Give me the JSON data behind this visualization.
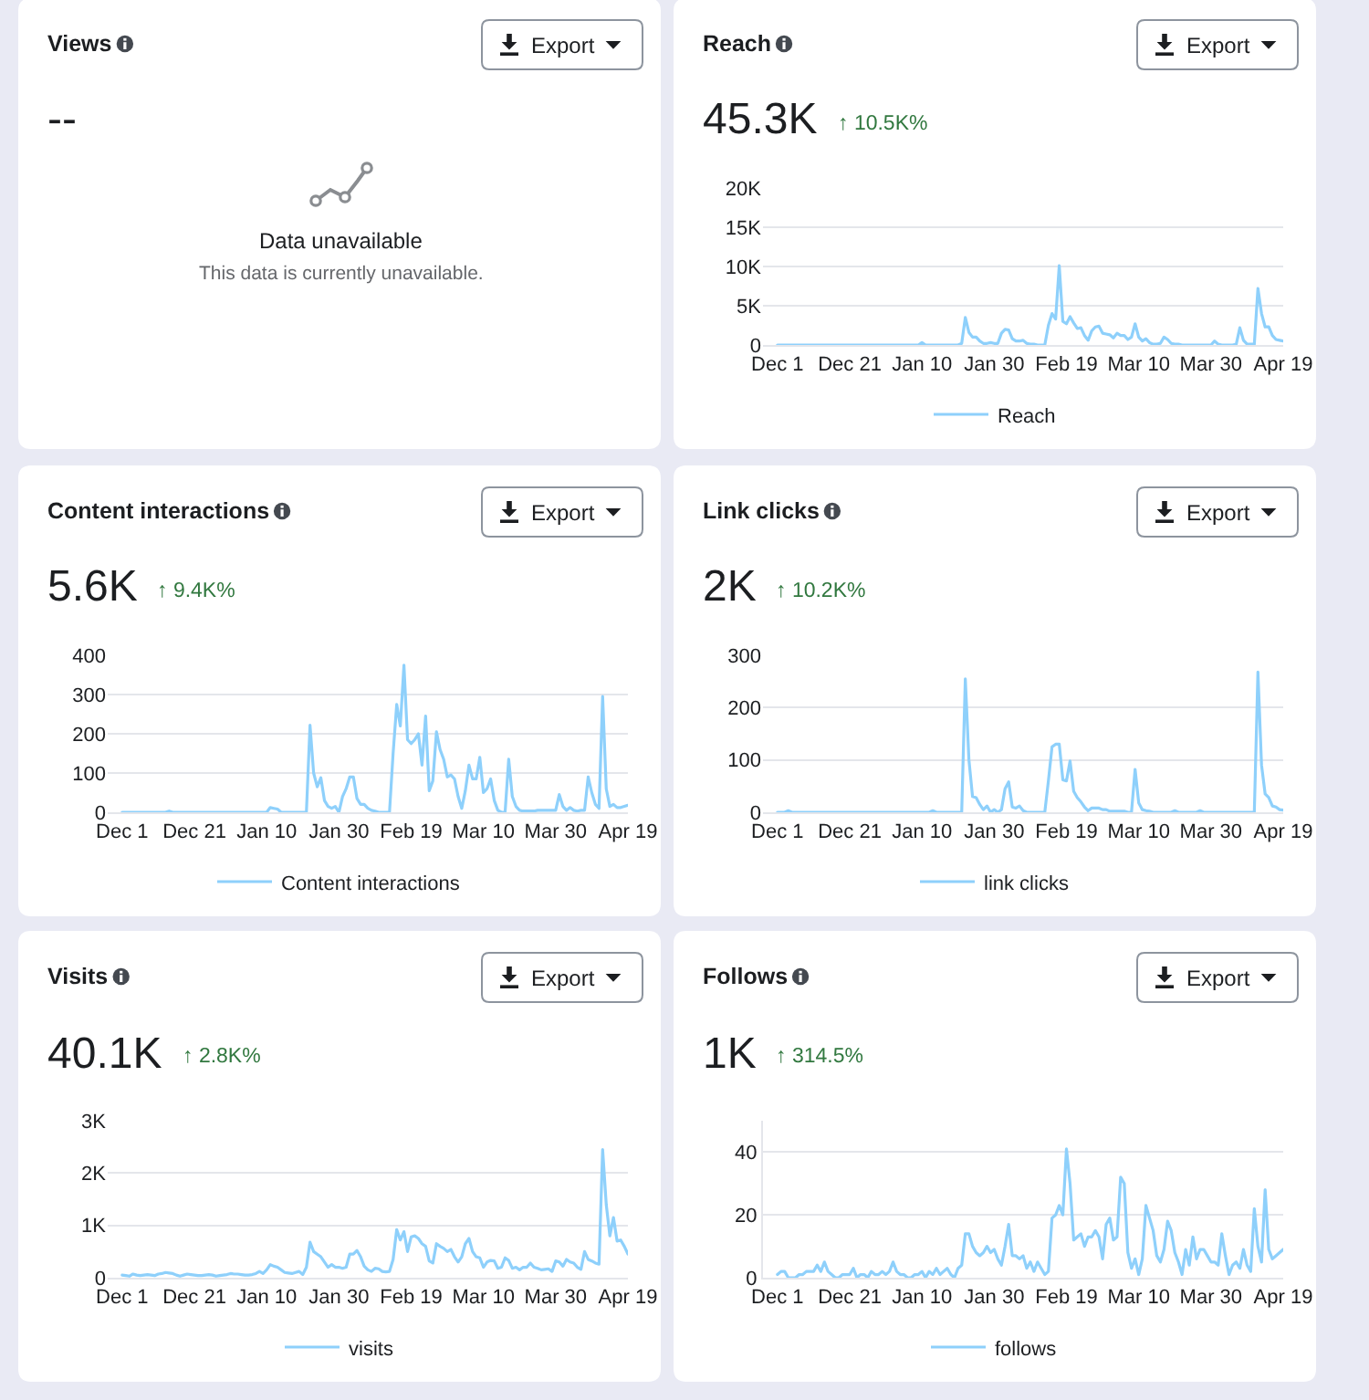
{
  "chart_data": [
    {
      "type": "other",
      "title": "Views",
      "subtitle": "--",
      "annotations": [
        "Export",
        "Data unavailable",
        "This data is currently unavailable."
      ]
    },
    {
      "type": "line",
      "title": "Reach",
      "subtitle": "45.3K",
      "annotations": [
        "Export",
        "↑ 10.5K%"
      ],
      "categories": [
        "Dec 1",
        null,
        null,
        null,
        null,
        null,
        null,
        null,
        null,
        null,
        null,
        null,
        null,
        null,
        null,
        null,
        null,
        null,
        null,
        null,
        "Dec 21",
        null,
        null,
        null,
        null,
        null,
        null,
        null,
        null,
        null,
        null,
        null,
        null,
        null,
        null,
        null,
        null,
        null,
        null,
        null,
        "Jan 10",
        null,
        null,
        null,
        null,
        null,
        null,
        null,
        null,
        null,
        null,
        null,
        null,
        null,
        null,
        null,
        null,
        null,
        null,
        null,
        "Jan 30",
        null,
        null,
        null,
        null,
        null,
        null,
        null,
        null,
        null,
        null,
        null,
        null,
        null,
        null,
        null,
        null,
        null,
        null,
        null,
        "Feb 19",
        null,
        null,
        null,
        null,
        null,
        null,
        null,
        null,
        null,
        null,
        null,
        null,
        null,
        null,
        null,
        null,
        null,
        null,
        null,
        "Mar 10",
        null,
        null,
        null,
        null,
        null,
        null,
        null,
        null,
        null,
        null,
        null,
        null,
        null,
        null,
        null,
        null,
        null,
        null,
        null,
        "Mar 30",
        null,
        null,
        null,
        null,
        null,
        null,
        null,
        null,
        null,
        null,
        null,
        null,
        null,
        null,
        null,
        null,
        null,
        null,
        null,
        "Apr 19"
      ],
      "series": [
        {
          "name": "Reach",
          "color": "#8ed0fb",
          "values": [
            0,
            0,
            0,
            0,
            0,
            0,
            0,
            0,
            0,
            0,
            0,
            0,
            0,
            0,
            0,
            0,
            0,
            0,
            0,
            0,
            0,
            0,
            0,
            0,
            0,
            0,
            0,
            0,
            0,
            0,
            0,
            0,
            0,
            0,
            0,
            0,
            0,
            0,
            0,
            0,
            300,
            0,
            0,
            0,
            0,
            0,
            0,
            0,
            0,
            0,
            0,
            200,
            3500,
            1600,
            1000,
            1000,
            500,
            200,
            200,
            300,
            200,
            200,
            1500,
            2000,
            1900,
            800,
            500,
            500,
            600,
            200,
            100,
            100,
            0,
            0,
            0,
            2500,
            4000,
            3300,
            10100,
            3000,
            2700,
            3600,
            2800,
            2100,
            2200,
            1200,
            600,
            1800,
            2300,
            2400,
            1500,
            1400,
            1300,
            900,
            1500,
            1200,
            1200,
            700,
            1000,
            2700,
            1000,
            500,
            800,
            300,
            100,
            100,
            200,
            1000,
            700,
            200,
            100,
            100,
            0,
            0,
            0,
            0,
            0,
            0,
            0,
            0,
            0,
            500,
            100,
            0,
            0,
            0,
            0,
            100,
            2200,
            600,
            100,
            100,
            100,
            7200,
            4000,
            2300,
            2300,
            1200,
            700,
            600,
            500
          ]
        }
      ],
      "ylim": [
        0,
        20000
      ],
      "yticks": [
        0,
        {
          "value": 5000,
          "label": "5K"
        },
        {
          "value": 10000,
          "label": "10K"
        },
        {
          "value": 15000,
          "label": "15K"
        },
        {
          "value": 20000,
          "label": "20K"
        }
      ],
      "grid": "y",
      "legend": "bottom"
    },
    {
      "type": "line",
      "title": "Content interactions",
      "subtitle": "5.6K",
      "annotations": [
        "Export",
        "↑ 9.4K%"
      ],
      "categories": [
        "Dec 1",
        null,
        null,
        null,
        null,
        null,
        null,
        null,
        null,
        null,
        null,
        null,
        null,
        null,
        null,
        null,
        null,
        null,
        null,
        null,
        "Dec 21",
        null,
        null,
        null,
        null,
        null,
        null,
        null,
        null,
        null,
        null,
        null,
        null,
        null,
        null,
        null,
        null,
        null,
        null,
        null,
        "Jan 10",
        null,
        null,
        null,
        null,
        null,
        null,
        null,
        null,
        null,
        null,
        null,
        null,
        null,
        null,
        null,
        null,
        null,
        null,
        null,
        "Jan 30",
        null,
        null,
        null,
        null,
        null,
        null,
        null,
        null,
        null,
        null,
        null,
        null,
        null,
        null,
        null,
        null,
        null,
        null,
        null,
        "Feb 19",
        null,
        null,
        null,
        null,
        null,
        null,
        null,
        null,
        null,
        null,
        null,
        null,
        null,
        null,
        null,
        null,
        null,
        null,
        null,
        "Mar 10",
        null,
        null,
        null,
        null,
        null,
        null,
        null,
        null,
        null,
        null,
        null,
        null,
        null,
        null,
        null,
        null,
        null,
        null,
        null,
        "Mar 30",
        null,
        null,
        null,
        null,
        null,
        null,
        null,
        null,
        null,
        null,
        null,
        null,
        null,
        null,
        null,
        null,
        null,
        null,
        null,
        "Apr 19"
      ],
      "series": [
        {
          "name": "Content interactions",
          "color": "#8ed0fb",
          "values": [
            0,
            0,
            0,
            0,
            0,
            0,
            0,
            0,
            0,
            0,
            0,
            0,
            0,
            3,
            0,
            0,
            0,
            0,
            0,
            0,
            0,
            0,
            0,
            0,
            0,
            0,
            0,
            0,
            0,
            0,
            0,
            0,
            0,
            0,
            0,
            0,
            0,
            0,
            0,
            0,
            0,
            12,
            10,
            8,
            0,
            0,
            0,
            0,
            0,
            0,
            0,
            0,
            222,
            100,
            65,
            88,
            30,
            15,
            10,
            15,
            0,
            40,
            60,
            90,
            90,
            35,
            20,
            20,
            10,
            5,
            3,
            0,
            0,
            0,
            0,
            150,
            275,
            220,
            375,
            185,
            175,
            185,
            200,
            120,
            245,
            55,
            80,
            205,
            160,
            135,
            90,
            95,
            85,
            40,
            10,
            55,
            120,
            85,
            85,
            140,
            50,
            60,
            85,
            30,
            5,
            0,
            0,
            135,
            40,
            15,
            5,
            3,
            3,
            3,
            3,
            5,
            5,
            5,
            5,
            5,
            5,
            45,
            15,
            5,
            12,
            5,
            3,
            5,
            5,
            90,
            50,
            20,
            10,
            295,
            60,
            15,
            20,
            12,
            12,
            15,
            18
          ]
        }
      ],
      "ylim": [
        0,
        400
      ],
      "yticks": [
        0,
        100,
        200,
        300,
        400
      ],
      "grid": "y",
      "legend": "bottom"
    },
    {
      "type": "line",
      "title": "Link clicks",
      "subtitle": "2K",
      "annotations": [
        "Export",
        "↑ 10.2K%"
      ],
      "categories": [
        "Dec 1",
        null,
        null,
        null,
        null,
        null,
        null,
        null,
        null,
        null,
        null,
        null,
        null,
        null,
        null,
        null,
        null,
        null,
        null,
        null,
        "Dec 21",
        null,
        null,
        null,
        null,
        null,
        null,
        null,
        null,
        null,
        null,
        null,
        null,
        null,
        null,
        null,
        null,
        null,
        null,
        null,
        "Jan 10",
        null,
        null,
        null,
        null,
        null,
        null,
        null,
        null,
        null,
        null,
        null,
        null,
        null,
        null,
        null,
        null,
        null,
        null,
        null,
        "Jan 30",
        null,
        null,
        null,
        null,
        null,
        null,
        null,
        null,
        null,
        null,
        null,
        null,
        null,
        null,
        null,
        null,
        null,
        null,
        null,
        "Feb 19",
        null,
        null,
        null,
        null,
        null,
        null,
        null,
        null,
        null,
        null,
        null,
        null,
        null,
        null,
        null,
        null,
        null,
        null,
        null,
        "Mar 10",
        null,
        null,
        null,
        null,
        null,
        null,
        null,
        null,
        null,
        null,
        null,
        null,
        null,
        null,
        null,
        null,
        null,
        null,
        null,
        "Mar 30",
        null,
        null,
        null,
        null,
        null,
        null,
        null,
        null,
        null,
        null,
        null,
        null,
        null,
        null,
        null,
        null,
        null,
        null,
        null,
        "Apr 19"
      ],
      "series": [
        {
          "name": "link clicks",
          "color": "#8ed0fb",
          "values": [
            0,
            0,
            0,
            3,
            0,
            0,
            0,
            0,
            0,
            0,
            0,
            0,
            0,
            0,
            0,
            0,
            0,
            0,
            0,
            0,
            0,
            0,
            0,
            0,
            0,
            0,
            0,
            0,
            0,
            0,
            0,
            0,
            0,
            0,
            0,
            0,
            0,
            0,
            0,
            0,
            0,
            0,
            0,
            3,
            0,
            0,
            0,
            0,
            0,
            0,
            0,
            0,
            255,
            100,
            30,
            28,
            15,
            5,
            12,
            0,
            5,
            0,
            5,
            45,
            58,
            10,
            8,
            12,
            3,
            0,
            0,
            0,
            0,
            0,
            0,
            60,
            125,
            130,
            130,
            62,
            60,
            98,
            40,
            28,
            20,
            10,
            3,
            8,
            8,
            8,
            5,
            5,
            2,
            2,
            2,
            2,
            2,
            0,
            0,
            82,
            18,
            5,
            3,
            2,
            0,
            0,
            0,
            0,
            0,
            0,
            3,
            0,
            0,
            0,
            0,
            0,
            0,
            3,
            0,
            0,
            0,
            0,
            0,
            0,
            0,
            0,
            0,
            0,
            0,
            0,
            0,
            0,
            0,
            268,
            90,
            35,
            28,
            12,
            10,
            5,
            4
          ]
        }
      ],
      "ylim": [
        0,
        300
      ],
      "yticks": [
        0,
        100,
        200,
        300
      ],
      "grid": "y",
      "legend": "bottom"
    },
    {
      "type": "line",
      "title": "Visits",
      "subtitle": "40.1K",
      "annotations": [
        "Export",
        "↑ 2.8K%"
      ],
      "categories": [
        "Dec 1",
        null,
        null,
        null,
        null,
        null,
        null,
        null,
        null,
        null,
        null,
        null,
        null,
        null,
        null,
        null,
        null,
        null,
        null,
        null,
        "Dec 21",
        null,
        null,
        null,
        null,
        null,
        null,
        null,
        null,
        null,
        null,
        null,
        null,
        null,
        null,
        null,
        null,
        null,
        null,
        null,
        "Jan 10",
        null,
        null,
        null,
        null,
        null,
        null,
        null,
        null,
        null,
        null,
        null,
        null,
        null,
        null,
        null,
        null,
        null,
        null,
        null,
        "Jan 30",
        null,
        null,
        null,
        null,
        null,
        null,
        null,
        null,
        null,
        null,
        null,
        null,
        null,
        null,
        null,
        null,
        null,
        null,
        null,
        "Feb 19",
        null,
        null,
        null,
        null,
        null,
        null,
        null,
        null,
        null,
        null,
        null,
        null,
        null,
        null,
        null,
        null,
        null,
        null,
        null,
        "Mar 10",
        null,
        null,
        null,
        null,
        null,
        null,
        null,
        null,
        null,
        null,
        null,
        null,
        null,
        null,
        null,
        null,
        null,
        null,
        null,
        "Mar 30",
        null,
        null,
        null,
        null,
        null,
        null,
        null,
        null,
        null,
        null,
        null,
        null,
        null,
        null,
        null,
        null,
        null,
        null,
        null,
        "Apr 19"
      ],
      "series": [
        {
          "name": "visits",
          "color": "#8ed0fb",
          "values": [
            50,
            40,
            30,
            70,
            50,
            40,
            50,
            60,
            50,
            40,
            70,
            80,
            100,
            90,
            80,
            50,
            30,
            50,
            70,
            60,
            50,
            40,
            40,
            50,
            60,
            50,
            30,
            40,
            50,
            60,
            80,
            70,
            70,
            60,
            50,
            50,
            60,
            80,
            120,
            80,
            150,
            250,
            220,
            200,
            150,
            100,
            90,
            80,
            100,
            120,
            60,
            200,
            680,
            500,
            450,
            400,
            300,
            200,
            250,
            200,
            200,
            180,
            200,
            450,
            450,
            520,
            400,
            220,
            150,
            120,
            180,
            170,
            120,
            110,
            120,
            350,
            920,
            720,
            880,
            500,
            780,
            800,
            750,
            650,
            600,
            320,
            280,
            650,
            600,
            560,
            500,
            540,
            400,
            300,
            400,
            650,
            750,
            500,
            400,
            380,
            200,
            300,
            330,
            320,
            180,
            200,
            380,
            330,
            180,
            200,
            150,
            200,
            200,
            280,
            200,
            180,
            150,
            160,
            170,
            120,
            320,
            300,
            220,
            350,
            300,
            280,
            200,
            160,
            500,
            350,
            320,
            280,
            260,
            2450,
            1400,
            800,
            1150,
            700,
            720,
            600,
            450
          ]
        }
      ],
      "ylim": [
        0,
        3000
      ],
      "yticks": [
        0,
        {
          "value": 1000,
          "label": "1K"
        },
        {
          "value": 2000,
          "label": "2K"
        },
        {
          "value": 3000,
          "label": "3K"
        }
      ],
      "grid": "y",
      "legend": "bottom"
    },
    {
      "type": "line",
      "title": "Follows",
      "subtitle": "1K",
      "annotations": [
        "Export",
        "↑ 314.5%"
      ],
      "categories": [
        "Dec 1",
        null,
        null,
        null,
        null,
        null,
        null,
        null,
        null,
        null,
        null,
        null,
        null,
        null,
        null,
        null,
        null,
        null,
        null,
        null,
        "Dec 21",
        null,
        null,
        null,
        null,
        null,
        null,
        null,
        null,
        null,
        null,
        null,
        null,
        null,
        null,
        null,
        null,
        null,
        null,
        null,
        "Jan 10",
        null,
        null,
        null,
        null,
        null,
        null,
        null,
        null,
        null,
        null,
        null,
        null,
        null,
        null,
        null,
        null,
        null,
        null,
        null,
        "Jan 30",
        null,
        null,
        null,
        null,
        null,
        null,
        null,
        null,
        null,
        null,
        null,
        null,
        null,
        null,
        null,
        null,
        null,
        null,
        null,
        "Feb 19",
        null,
        null,
        null,
        null,
        null,
        null,
        null,
        null,
        null,
        null,
        null,
        null,
        null,
        null,
        null,
        null,
        null,
        null,
        null,
        "Mar 10",
        null,
        null,
        null,
        null,
        null,
        null,
        null,
        null,
        null,
        null,
        null,
        null,
        null,
        null,
        null,
        null,
        null,
        null,
        null,
        "Mar 30",
        null,
        null,
        null,
        null,
        null,
        null,
        null,
        null,
        null,
        null,
        null,
        null,
        null,
        null,
        null,
        null,
        null,
        null,
        null,
        "Apr 19"
      ],
      "series": [
        {
          "name": "follows",
          "color": "#8ed0fb",
          "values": [
            1,
            2,
            2,
            0,
            0,
            0,
            1,
            1,
            2,
            2,
            2,
            4,
            2,
            5,
            2,
            1,
            0,
            0,
            1,
            1,
            1,
            3,
            0,
            1,
            1,
            0,
            2,
            1,
            1,
            2,
            1,
            2,
            5,
            2,
            1,
            1,
            0,
            0,
            1,
            1,
            2,
            0,
            2,
            1,
            3,
            1,
            2,
            3,
            1,
            0,
            3,
            4,
            14,
            14,
            10,
            8,
            7,
            8,
            10,
            8,
            9,
            6,
            4,
            10,
            17,
            7,
            7,
            6,
            7,
            3,
            5,
            2,
            5,
            3,
            1,
            2,
            19,
            20,
            23,
            20,
            41,
            30,
            12,
            13,
            14,
            10,
            13,
            13,
            15,
            13,
            6,
            17,
            19,
            12,
            13,
            32,
            30,
            8,
            3,
            6,
            1,
            6,
            23,
            19,
            15,
            7,
            5,
            9,
            18,
            15,
            8,
            5,
            1,
            9,
            4,
            13,
            6,
            9,
            9,
            7,
            5,
            5,
            4,
            14,
            7,
            1,
            4,
            5,
            3,
            9,
            4,
            2,
            22,
            10,
            5,
            28,
            9,
            6,
            7,
            8,
            9
          ]
        }
      ],
      "ylim": [
        0,
        50
      ],
      "yticks": [
        0,
        20,
        40
      ],
      "grid": "y",
      "legend": "bottom"
    }
  ]
}
